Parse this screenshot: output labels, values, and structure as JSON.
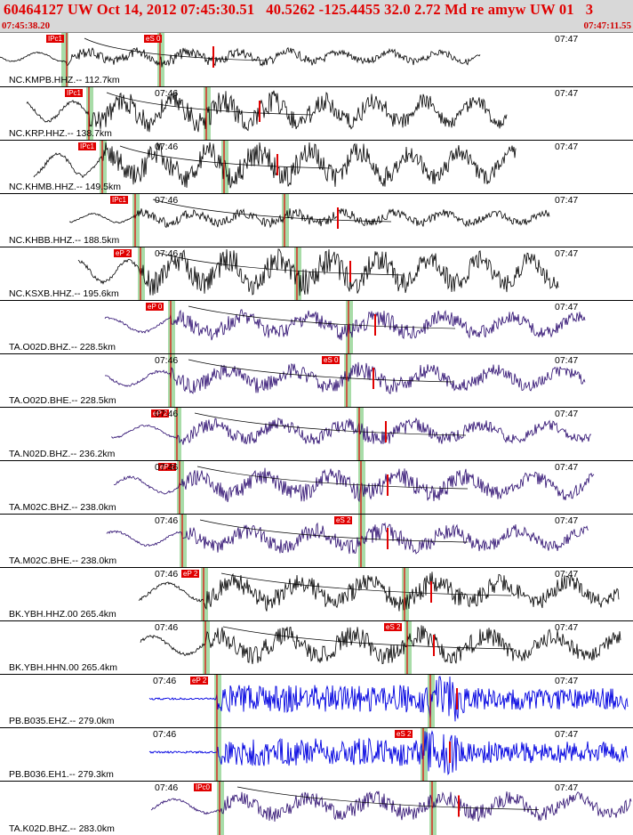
{
  "header": {
    "title": "60464127 UW Oct 14, 2012 07:45:30.51   40.5262 -125.4455 32.0 2.72 Md re amyw UW 01   3",
    "start_time": "07:45:38.20",
    "end_time": "07:47:11.55"
  },
  "colors": {
    "black_trace": "#000000",
    "purple_trace": "#2a0a6e",
    "blue_trace": "#0000e0",
    "pick": "#e00000",
    "window": "#a8dca8"
  },
  "traces": [
    {
      "id": "kmpb",
      "station": "NC.KMPB.HHZ.-- 112.7km",
      "tick1": "",
      "tick2": "07:47",
      "pick1_label": "IPc1",
      "pick2_label": "eS 0",
      "color": "black"
    },
    {
      "id": "krp",
      "station": "NC.KRP.HHZ.-- 138.7km",
      "tick1": "07:46",
      "tick2": "07:47",
      "pick1_label": "IPc1",
      "pick2_label": "",
      "color": "black"
    },
    {
      "id": "khmb",
      "station": "NC.KHMB.HHZ.-- 149.5km",
      "tick1": "07:46",
      "tick2": "07:47",
      "pick1_label": "IPc1",
      "pick2_label": "",
      "color": "black"
    },
    {
      "id": "khbb",
      "station": "NC.KHBB.HHZ.-- 188.5km",
      "tick1": "07:46",
      "tick2": "07:47",
      "pick1_label": "IPc1",
      "pick2_label": "",
      "color": "black"
    },
    {
      "id": "ksxb",
      "station": "NC.KSXB.HHZ.-- 195.6km",
      "tick1": "07:46",
      "tick2": "07:47",
      "pick1_label": "eP 2",
      "pick2_label": "",
      "color": "black"
    },
    {
      "id": "o02d-z",
      "station": "TA.O02D.BHZ.-- 228.5km",
      "tick1": "",
      "tick2": "07:47",
      "pick1_label": "eP 0",
      "pick2_label": "",
      "color": "purple"
    },
    {
      "id": "o02d-e",
      "station": "TA.O02D.BHE.-- 228.5km",
      "tick1": "07:46",
      "tick2": "07:47",
      "pick1_label": "",
      "pick2_label": "eS 0",
      "color": "purple"
    },
    {
      "id": "n02d",
      "station": "TA.N02D.BHZ.-- 236.2km",
      "tick1": "07:46",
      "tick2": "07:47",
      "pick1_label": "eP 2",
      "pick2_label": "",
      "color": "purple"
    },
    {
      "id": "m02c-z",
      "station": "TA.M02C.BHZ.-- 238.0km",
      "tick1": "07:46",
      "tick2": "07:47",
      "pick1_label": "eP 2",
      "pick2_label": "",
      "color": "purple"
    },
    {
      "id": "m02c-e",
      "station": "TA.M02C.BHE.-- 238.0km",
      "tick1": "07:46",
      "tick2": "07:47",
      "pick1_label": "",
      "pick2_label": "eS 2",
      "color": "purple"
    },
    {
      "id": "ybh-z",
      "station": "BK.YBH.HHZ.00 265.4km",
      "tick1": "07:46",
      "tick2": "07:47",
      "pick1_label": "eP 2",
      "pick2_label": "",
      "color": "black"
    },
    {
      "id": "ybh-n",
      "station": "BK.YBH.HHN.00 265.4km",
      "tick1": "07:46",
      "tick2": "07:47",
      "pick1_label": "",
      "pick2_label": "eS 2",
      "color": "black"
    },
    {
      "id": "b035",
      "station": "PB.B035.EHZ.-- 279.0km",
      "tick1": "07:46",
      "tick2": "07:47",
      "pick1_label": "eP 2",
      "pick2_label": "",
      "color": "blue"
    },
    {
      "id": "b036",
      "station": "PB.B036.EH1.-- 279.3km",
      "tick1": "07:46",
      "tick2": "07:47",
      "pick1_label": "",
      "pick2_label": "eS 2",
      "color": "blue"
    },
    {
      "id": "k02d",
      "station": "TA.K02D.BHZ.-- 283.0km",
      "tick1": "07:46",
      "tick2": "07:47",
      "pick1_label": "IPc0",
      "pick2_label": "",
      "color": "purple"
    }
  ]
}
